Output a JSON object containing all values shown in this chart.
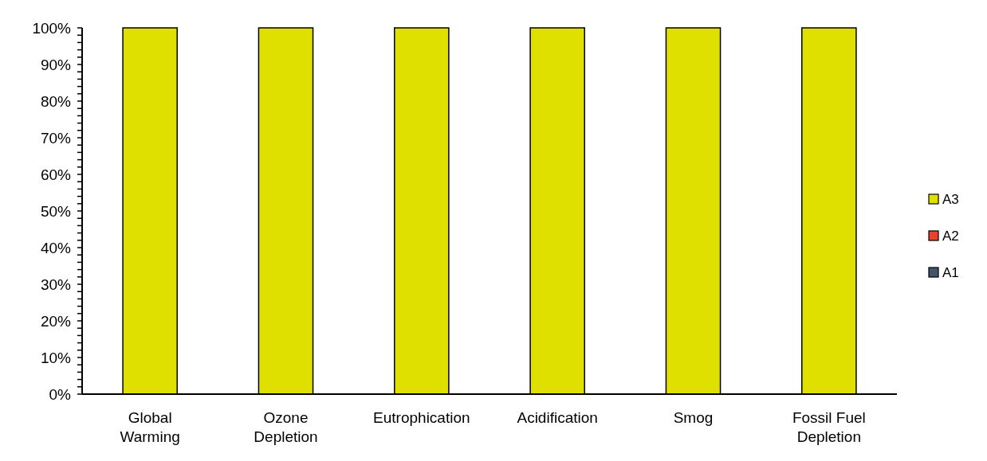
{
  "chart_data": {
    "type": "bar",
    "stacked": true,
    "categories": [
      "Global Warming",
      "Ozone Depletion",
      "Eutrophication",
      "Acidification",
      "Smog",
      "Fossil Fuel Depletion"
    ],
    "series": [
      {
        "name": "A1",
        "color": "#44546a",
        "values": [
          0,
          0,
          0,
          0,
          0,
          0
        ]
      },
      {
        "name": "A2",
        "color": "#e8432d",
        "values": [
          0,
          0,
          0,
          0,
          0,
          0
        ]
      },
      {
        "name": "A3",
        "color": "#e0e000",
        "values": [
          100,
          100,
          100,
          100,
          100,
          100
        ]
      }
    ],
    "ylim": [
      0,
      100
    ],
    "yticks": [
      {
        "value": 0,
        "label": "0%"
      },
      {
        "value": 2,
        "label": null
      },
      {
        "value": 4,
        "label": null
      },
      {
        "value": 6,
        "label": null
      },
      {
        "value": 8,
        "label": null
      },
      {
        "value": 10,
        "label": "10%"
      },
      {
        "value": 12,
        "label": null
      },
      {
        "value": 14,
        "label": null
      },
      {
        "value": 16,
        "label": null
      },
      {
        "value": 18,
        "label": null
      },
      {
        "value": 20,
        "label": "20%"
      },
      {
        "value": 22,
        "label": null
      },
      {
        "value": 24,
        "label": null
      },
      {
        "value": 26,
        "label": null
      },
      {
        "value": 28,
        "label": null
      },
      {
        "value": 30,
        "label": "30%"
      },
      {
        "value": 32,
        "label": null
      },
      {
        "value": 34,
        "label": null
      },
      {
        "value": 36,
        "label": null
      },
      {
        "value": 38,
        "label": null
      },
      {
        "value": 40,
        "label": "40%"
      },
      {
        "value": 42,
        "label": null
      },
      {
        "value": 44,
        "label": null
      },
      {
        "value": 46,
        "label": null
      },
      {
        "value": 48,
        "label": null
      },
      {
        "value": 50,
        "label": "50%"
      },
      {
        "value": 52,
        "label": null
      },
      {
        "value": 54,
        "label": null
      },
      {
        "value": 56,
        "label": null
      },
      {
        "value": 58,
        "label": null
      },
      {
        "value": 60,
        "label": "60%"
      },
      {
        "value": 62,
        "label": null
      },
      {
        "value": 64,
        "label": null
      },
      {
        "value": 66,
        "label": null
      },
      {
        "value": 68,
        "label": null
      },
      {
        "value": 70,
        "label": "70%"
      },
      {
        "value": 72,
        "label": null
      },
      {
        "value": 74,
        "label": null
      },
      {
        "value": 76,
        "label": null
      },
      {
        "value": 78,
        "label": null
      },
      {
        "value": 80,
        "label": "80%"
      },
      {
        "value": 82,
        "label": null
      },
      {
        "value": 84,
        "label": null
      },
      {
        "value": 86,
        "label": null
      },
      {
        "value": 88,
        "label": null
      },
      {
        "value": 90,
        "label": "90%"
      },
      {
        "value": 92,
        "label": null
      },
      {
        "value": 94,
        "label": null
      },
      {
        "value": 96,
        "label": null
      },
      {
        "value": 98,
        "label": null
      },
      {
        "value": 100,
        "label": "100%"
      }
    ],
    "legend": "right",
    "grid": false
  }
}
